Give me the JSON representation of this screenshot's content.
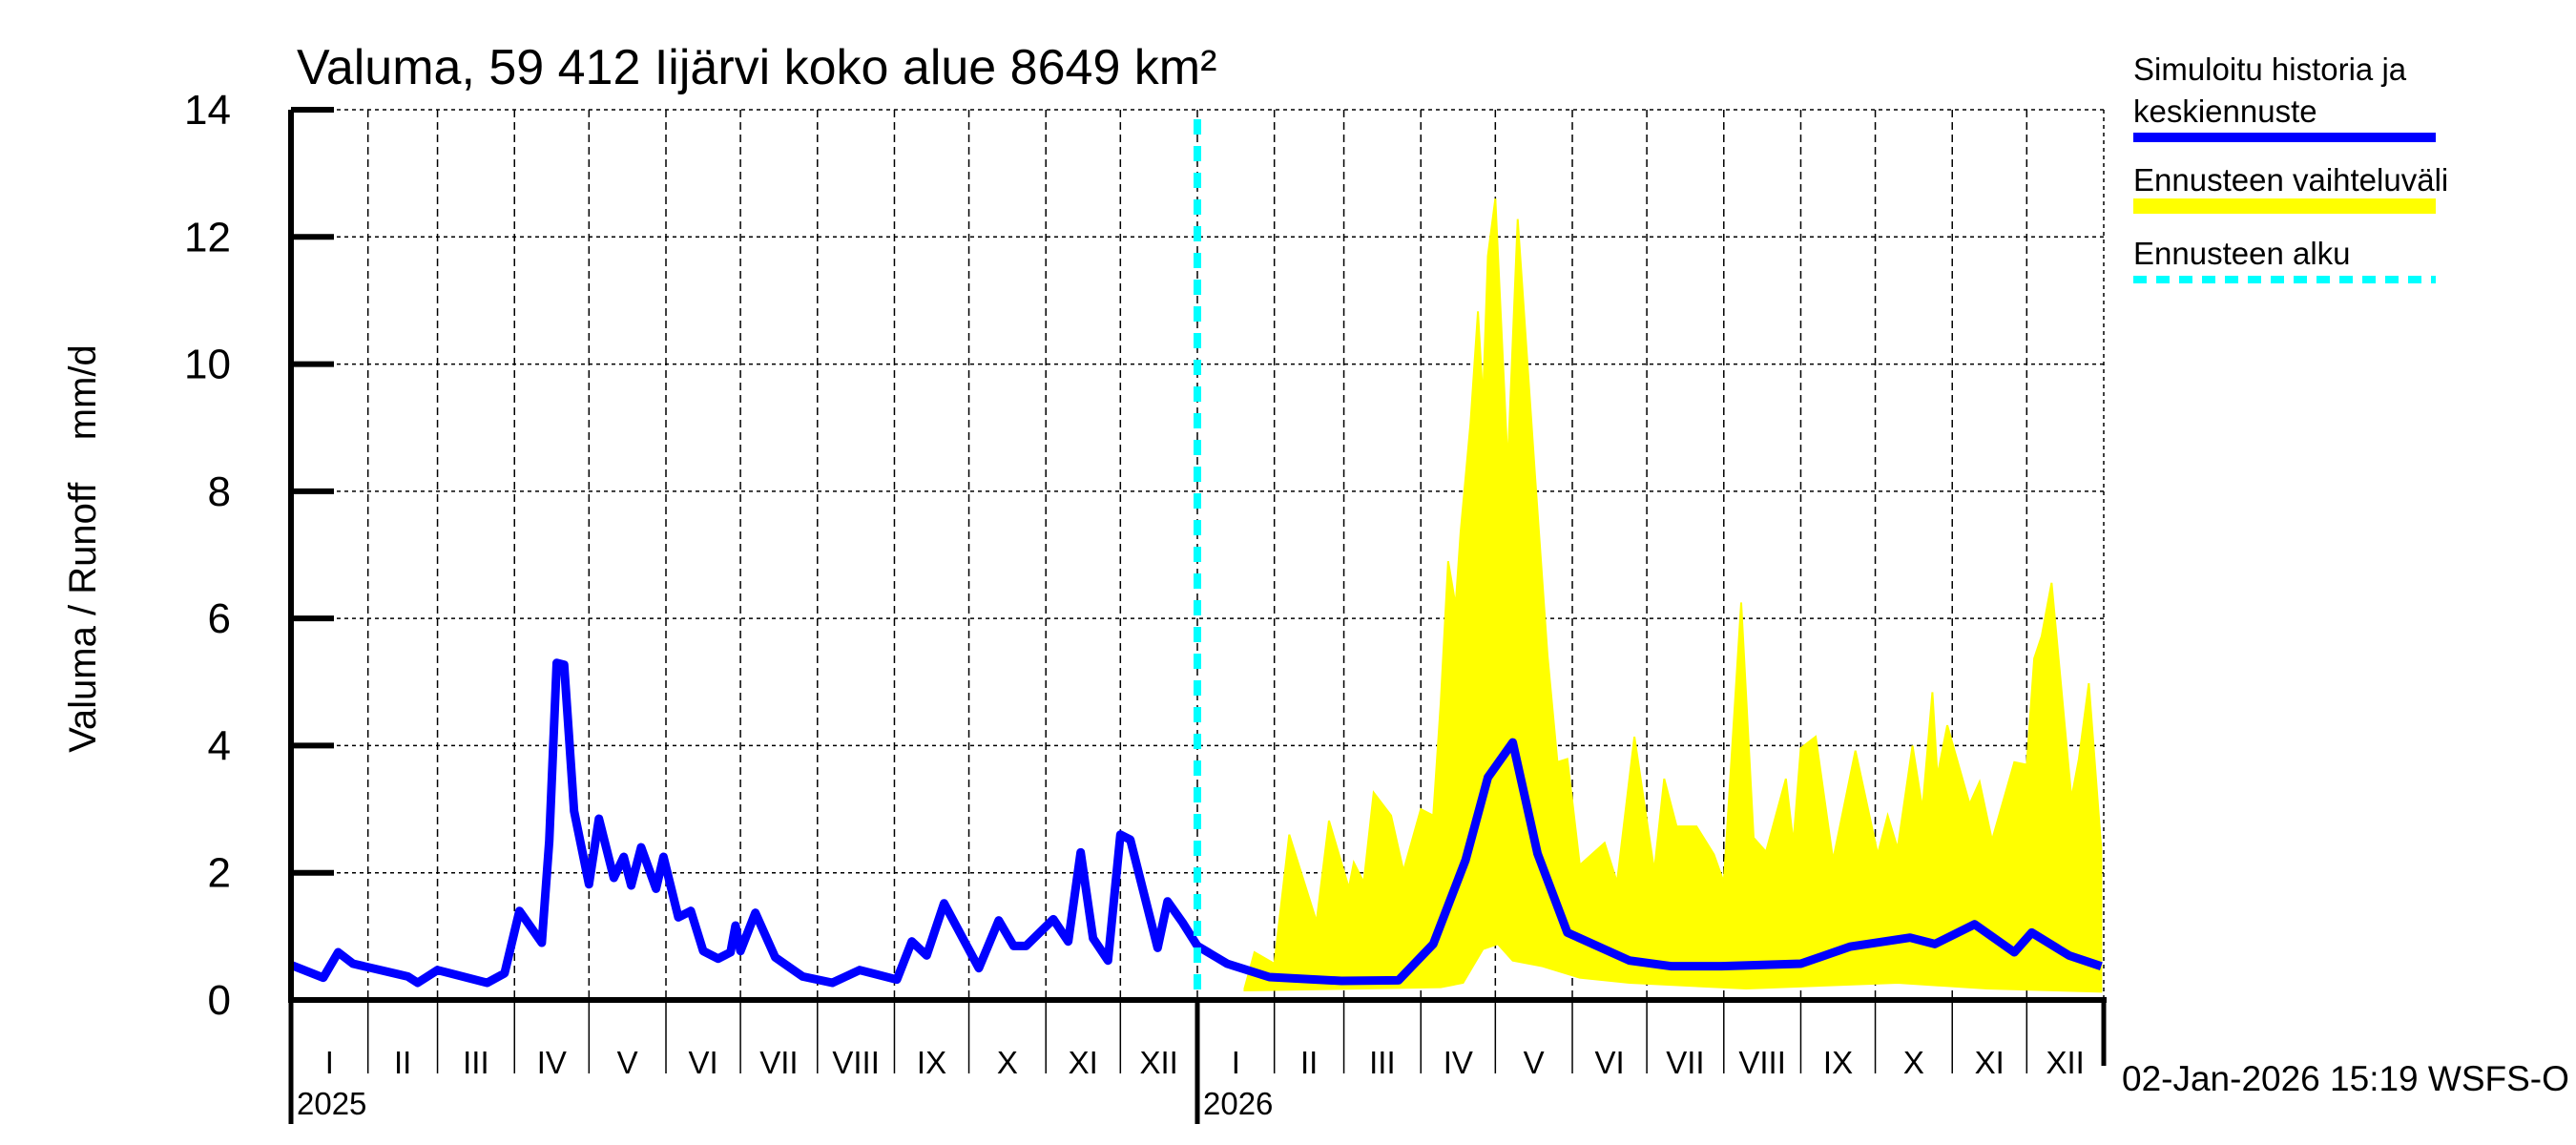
{
  "chart_data": {
    "type": "line",
    "title": "Valuma, 59 412 Iijärvi koko alue 8649 km²",
    "ylabel": "Valuma / Runoff    mm/d",
    "ylim": [
      0,
      14
    ],
    "yticks": [
      "0",
      "2",
      "4",
      "6",
      "8",
      "10",
      "12",
      "14"
    ],
    "xlim": [
      "2025-01-01",
      "2027-01-01"
    ],
    "year_labels": [
      "2025",
      "2026"
    ],
    "month_labels": [
      "I",
      "II",
      "III",
      "IV",
      "V",
      "VI",
      "VII",
      "VIII",
      "IX",
      "X",
      "XI",
      "XII",
      "I",
      "II",
      "III",
      "IV",
      "V",
      "VI",
      "VII",
      "VIII",
      "IX",
      "X",
      "XI",
      "XII"
    ],
    "grid": true,
    "legend_placement": "right",
    "forecast_start": "2026-01-01",
    "colors": {
      "history": "#0000ff",
      "band": "#ffff00",
      "forecast_start": "#00ffff"
    },
    "series": [
      {
        "name": "Simuloitu historia ja keskiennuste",
        "points": [
          [
            "2025-01-01",
            0.55
          ],
          [
            "2025-01-14",
            0.35
          ],
          [
            "2025-01-20",
            0.75
          ],
          [
            "2025-01-26",
            0.57
          ],
          [
            "2025-02-17",
            0.37
          ],
          [
            "2025-02-21",
            0.27
          ],
          [
            "2025-03-01",
            0.47
          ],
          [
            "2025-03-21",
            0.27
          ],
          [
            "2025-03-28",
            0.42
          ],
          [
            "2025-04-03",
            1.4
          ],
          [
            "2025-04-12",
            0.9
          ],
          [
            "2025-04-15",
            2.5
          ],
          [
            "2025-04-18",
            5.3
          ],
          [
            "2025-04-21",
            5.27
          ],
          [
            "2025-04-25",
            2.97
          ],
          [
            "2025-05-01",
            1.82
          ],
          [
            "2025-05-05",
            2.85
          ],
          [
            "2025-05-11",
            1.92
          ],
          [
            "2025-05-15",
            2.25
          ],
          [
            "2025-05-18",
            1.8
          ],
          [
            "2025-05-22",
            2.4
          ],
          [
            "2025-05-28",
            1.75
          ],
          [
            "2025-05-31",
            2.25
          ],
          [
            "2025-06-06",
            1.3
          ],
          [
            "2025-06-11",
            1.4
          ],
          [
            "2025-06-16",
            0.77
          ],
          [
            "2025-06-22",
            0.65
          ],
          [
            "2025-06-27",
            0.75
          ],
          [
            "2025-06-29",
            1.17
          ],
          [
            "2025-07-01",
            0.77
          ],
          [
            "2025-07-07",
            1.37
          ],
          [
            "2025-07-15",
            0.67
          ],
          [
            "2025-07-26",
            0.37
          ],
          [
            "2025-08-07",
            0.27
          ],
          [
            "2025-08-18",
            0.47
          ],
          [
            "2025-09-02",
            0.32
          ],
          [
            "2025-09-08",
            0.92
          ],
          [
            "2025-09-14",
            0.7
          ],
          [
            "2025-09-21",
            1.52
          ],
          [
            "2025-10-05",
            0.5
          ],
          [
            "2025-10-13",
            1.25
          ],
          [
            "2025-10-19",
            0.85
          ],
          [
            "2025-10-24",
            0.85
          ],
          [
            "2025-11-04",
            1.27
          ],
          [
            "2025-11-10",
            0.92
          ],
          [
            "2025-11-15",
            2.32
          ],
          [
            "2025-11-20",
            0.97
          ],
          [
            "2025-11-26",
            0.62
          ],
          [
            "2025-12-01",
            2.6
          ],
          [
            "2025-12-05",
            2.52
          ],
          [
            "2025-12-16",
            0.82
          ],
          [
            "2025-12-20",
            1.55
          ],
          [
            "2025-12-26",
            1.22
          ],
          [
            "2026-01-01",
            0.85
          ],
          [
            "2026-01-13",
            0.57
          ],
          [
            "2026-01-30",
            0.36
          ],
          [
            "2026-02-28",
            0.3
          ],
          [
            "2026-03-23",
            0.31
          ],
          [
            "2026-04-06",
            0.88
          ],
          [
            "2026-04-19",
            2.2
          ],
          [
            "2026-04-28",
            3.5
          ],
          [
            "2026-05-08",
            4.05
          ],
          [
            "2026-05-18",
            2.3
          ],
          [
            "2026-05-30",
            1.06
          ],
          [
            "2026-06-24",
            0.62
          ],
          [
            "2026-07-11",
            0.53
          ],
          [
            "2026-07-31",
            0.53
          ],
          [
            "2026-09-01",
            0.57
          ],
          [
            "2026-09-21",
            0.84
          ],
          [
            "2026-10-15",
            0.98
          ],
          [
            "2026-10-25",
            0.88
          ],
          [
            "2026-11-10",
            1.19
          ],
          [
            "2026-11-26",
            0.75
          ],
          [
            "2026-12-03",
            1.06
          ],
          [
            "2026-12-18",
            0.7
          ],
          [
            "2026-12-31",
            0.53
          ]
        ]
      },
      {
        "name": "Ennusteen vaihteluväli",
        "upper": [
          [
            "2026-01-20",
            0.18
          ],
          [
            "2026-01-24",
            0.75
          ],
          [
            "2026-02-01",
            0.57
          ],
          [
            "2026-02-07",
            2.6
          ],
          [
            "2026-02-18",
            1.23
          ],
          [
            "2026-02-23",
            2.82
          ],
          [
            "2026-03-03",
            1.76
          ],
          [
            "2026-03-05",
            2.16
          ],
          [
            "2026-03-09",
            1.85
          ],
          [
            "2026-03-13",
            3.26
          ],
          [
            "2026-03-20",
            2.9
          ],
          [
            "2026-03-25",
            2.03
          ],
          [
            "2026-04-01",
            3.0
          ],
          [
            "2026-04-06",
            2.9
          ],
          [
            "2026-04-09",
            4.67
          ],
          [
            "2026-04-12",
            6.9
          ],
          [
            "2026-04-15",
            6.2
          ],
          [
            "2026-04-17",
            7.35
          ],
          [
            "2026-04-21",
            9.07
          ],
          [
            "2026-04-24",
            10.83
          ],
          [
            "2026-04-26",
            9.42
          ],
          [
            "2026-04-28",
            11.7
          ],
          [
            "2026-05-01",
            12.6
          ],
          [
            "2026-05-06",
            8.41
          ],
          [
            "2026-05-10",
            12.28
          ],
          [
            "2026-05-17",
            8.23
          ],
          [
            "2026-05-22",
            5.42
          ],
          [
            "2026-05-26",
            3.74
          ],
          [
            "2026-05-30",
            3.79
          ],
          [
            "2026-06-04",
            2.12
          ],
          [
            "2026-06-14",
            2.47
          ],
          [
            "2026-06-19",
            1.85
          ],
          [
            "2026-06-26",
            4.14
          ],
          [
            "2026-07-04",
            2.03
          ],
          [
            "2026-07-08",
            3.48
          ],
          [
            "2026-07-13",
            2.73
          ],
          [
            "2026-07-21",
            2.73
          ],
          [
            "2026-07-28",
            2.29
          ],
          [
            "2026-08-01",
            1.85
          ],
          [
            "2026-08-08",
            6.25
          ],
          [
            "2026-08-13",
            2.55
          ],
          [
            "2026-08-18",
            2.33
          ],
          [
            "2026-08-26",
            3.48
          ],
          [
            "2026-08-29",
            2.47
          ],
          [
            "2026-09-01",
            3.96
          ],
          [
            "2026-09-07",
            4.14
          ],
          [
            "2026-09-14",
            2.2
          ],
          [
            "2026-09-23",
            3.92
          ],
          [
            "2026-10-02",
            2.29
          ],
          [
            "2026-10-06",
            2.9
          ],
          [
            "2026-10-10",
            2.38
          ],
          [
            "2026-10-16",
            4.0
          ],
          [
            "2026-10-20",
            3.0
          ],
          [
            "2026-10-24",
            4.84
          ],
          [
            "2026-10-26",
            3.52
          ],
          [
            "2026-10-30",
            4.32
          ],
          [
            "2026-11-08",
            3.08
          ],
          [
            "2026-11-12",
            3.43
          ],
          [
            "2026-11-17",
            2.51
          ],
          [
            "2026-11-26",
            3.74
          ],
          [
            "2026-12-01",
            3.7
          ],
          [
            "2026-12-04",
            5.37
          ],
          [
            "2026-12-07",
            5.72
          ],
          [
            "2026-12-11",
            6.56
          ],
          [
            "2026-12-19",
            3.17
          ],
          [
            "2026-12-22",
            3.79
          ],
          [
            "2026-12-26",
            4.98
          ],
          [
            "2026-12-31",
            2.38
          ]
        ],
        "lower": [
          [
            "2026-01-20",
            0.15
          ],
          [
            "2026-04-09",
            0.2
          ],
          [
            "2026-04-18",
            0.27
          ],
          [
            "2026-04-26",
            0.8
          ],
          [
            "2026-05-02",
            0.88
          ],
          [
            "2026-05-08",
            0.62
          ],
          [
            "2026-05-20",
            0.53
          ],
          [
            "2026-06-04",
            0.35
          ],
          [
            "2026-06-24",
            0.27
          ],
          [
            "2026-08-10",
            0.18
          ],
          [
            "2026-10-10",
            0.27
          ],
          [
            "2026-11-15",
            0.18
          ],
          [
            "2026-12-31",
            0.13
          ]
        ]
      },
      {
        "name": "Ennusteen alku"
      }
    ]
  },
  "legend": {
    "history_line1": "Simuloitu historia ja",
    "history_line2": "keskiennuste",
    "band": "Ennusteen vaihteluväli",
    "forecast_start": "Ennusteen alku"
  },
  "footer": {
    "timestamp": "02-Jan-2026 15:19 WSFS-O"
  }
}
